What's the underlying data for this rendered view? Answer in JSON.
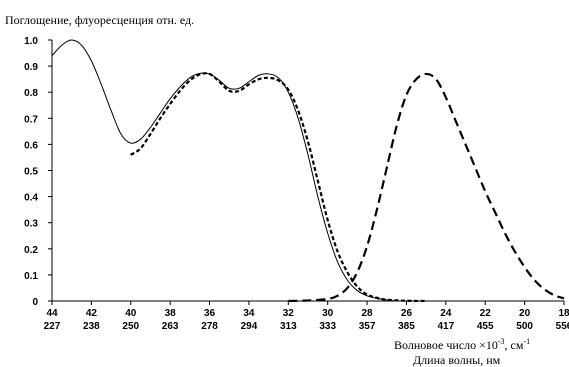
{
  "chart_data": {
    "type": "line",
    "ylabel": "Поглощение, флуоресценция отн. ед.",
    "xlabel_wavenumber": "Волновое число ×10",
    "xlabel_wavenumber_exp": "-3",
    "xlabel_wavenumber_unit": ", см",
    "xlabel_wavenumber_unit_exp": "-1",
    "xlabel_wavelength": "Длина волны, нм",
    "x_range": [
      44,
      18
    ],
    "ylim": [
      0,
      1.0
    ],
    "y_ticks": [
      "0",
      "0.1",
      "0.2",
      "0.3",
      "0.4",
      "0.5",
      "0.6",
      "0.7",
      "0.8",
      "0.9",
      "1.0"
    ],
    "x_ticks_wavenumber": [
      "44",
      "42",
      "40",
      "38",
      "36",
      "34",
      "32",
      "30",
      "28",
      "26",
      "24",
      "22",
      "20",
      "18"
    ],
    "x_ticks_wavelength": [
      "227",
      "238",
      "250",
      "263",
      "278",
      "294",
      "313",
      "333",
      "357",
      "385",
      "417",
      "455",
      "500",
      "556"
    ],
    "grid": false,
    "legend": "none",
    "series": [
      {
        "style": "solid",
        "color": "#000000",
        "points": [
          [
            44.0,
            0.94
          ],
          [
            43.5,
            0.98
          ],
          [
            43.0,
            1.0
          ],
          [
            42.5,
            0.98
          ],
          [
            42.0,
            0.92
          ],
          [
            41.5,
            0.83
          ],
          [
            41.0,
            0.73
          ],
          [
            40.5,
            0.64
          ],
          [
            40.0,
            0.605
          ],
          [
            39.5,
            0.62
          ],
          [
            39.0,
            0.665
          ],
          [
            38.5,
            0.72
          ],
          [
            38.0,
            0.775
          ],
          [
            37.5,
            0.82
          ],
          [
            37.0,
            0.855
          ],
          [
            36.5,
            0.872
          ],
          [
            36.0,
            0.87
          ],
          [
            35.5,
            0.845
          ],
          [
            35.0,
            0.815
          ],
          [
            34.5,
            0.815
          ],
          [
            34.0,
            0.84
          ],
          [
            33.5,
            0.865
          ],
          [
            33.0,
            0.87
          ],
          [
            32.5,
            0.855
          ],
          [
            32.0,
            0.8
          ],
          [
            31.5,
            0.7
          ],
          [
            31.0,
            0.56
          ],
          [
            30.5,
            0.4
          ],
          [
            30.0,
            0.26
          ],
          [
            29.5,
            0.15
          ],
          [
            29.0,
            0.08
          ],
          [
            28.5,
            0.04
          ],
          [
            28.0,
            0.02
          ],
          [
            27.5,
            0.01
          ],
          [
            27.0,
            0.004
          ],
          [
            26.5,
            0.0
          ]
        ]
      },
      {
        "style": "dotted",
        "color": "#000000",
        "points": [
          [
            40.0,
            0.56
          ],
          [
            39.5,
            0.585
          ],
          [
            39.0,
            0.64
          ],
          [
            38.5,
            0.7
          ],
          [
            38.0,
            0.755
          ],
          [
            37.5,
            0.805
          ],
          [
            37.0,
            0.845
          ],
          [
            36.5,
            0.868
          ],
          [
            36.0,
            0.87
          ],
          [
            35.5,
            0.84
          ],
          [
            35.0,
            0.805
          ],
          [
            34.5,
            0.805
          ],
          [
            34.0,
            0.83
          ],
          [
            33.5,
            0.85
          ],
          [
            33.0,
            0.855
          ],
          [
            32.5,
            0.845
          ],
          [
            32.0,
            0.81
          ],
          [
            31.5,
            0.73
          ],
          [
            31.0,
            0.61
          ],
          [
            30.5,
            0.46
          ],
          [
            30.0,
            0.31
          ],
          [
            29.5,
            0.19
          ],
          [
            29.0,
            0.11
          ],
          [
            28.5,
            0.055
          ],
          [
            28.0,
            0.025
          ],
          [
            27.5,
            0.012
          ],
          [
            27.0,
            0.005
          ],
          [
            26.0,
            0.001
          ],
          [
            25.0,
            0.0
          ]
        ]
      },
      {
        "style": "dashed",
        "color": "#000000",
        "points": [
          [
            32.0,
            0.0
          ],
          [
            31.0,
            0.002
          ],
          [
            30.0,
            0.008
          ],
          [
            29.5,
            0.02
          ],
          [
            29.0,
            0.05
          ],
          [
            28.5,
            0.11
          ],
          [
            28.0,
            0.21
          ],
          [
            27.5,
            0.35
          ],
          [
            27.0,
            0.51
          ],
          [
            26.5,
            0.67
          ],
          [
            26.0,
            0.79
          ],
          [
            25.5,
            0.85
          ],
          [
            25.0,
            0.87
          ],
          [
            24.5,
            0.85
          ],
          [
            24.0,
            0.78
          ],
          [
            23.5,
            0.69
          ],
          [
            23.0,
            0.6
          ],
          [
            22.5,
            0.51
          ],
          [
            22.0,
            0.42
          ],
          [
            21.5,
            0.34
          ],
          [
            21.0,
            0.26
          ],
          [
            20.5,
            0.19
          ],
          [
            20.0,
            0.13
          ],
          [
            19.5,
            0.08
          ],
          [
            19.0,
            0.045
          ],
          [
            18.5,
            0.022
          ],
          [
            18.0,
            0.01
          ]
        ]
      }
    ]
  }
}
